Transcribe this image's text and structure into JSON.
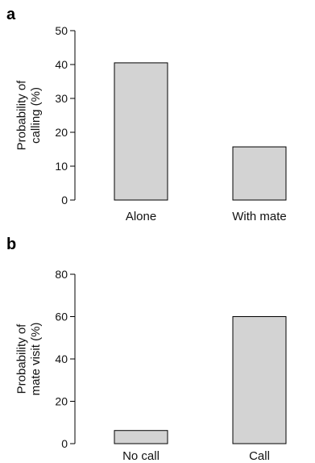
{
  "chart_data": [
    {
      "type": "bar",
      "panel": "a",
      "categories": [
        "Alone",
        "With mate"
      ],
      "values": [
        40.5,
        15.7
      ],
      "ylabel_lines": [
        "Probability of",
        "calling (%)"
      ],
      "ylim": [
        0,
        50
      ],
      "yticks": [
        0,
        10,
        20,
        30,
        40,
        50
      ],
      "bar_color": "#d3d3d3"
    },
    {
      "type": "bar",
      "panel": "b",
      "categories": [
        "No call",
        "Call"
      ],
      "values": [
        6.2,
        60
      ],
      "ylabel_lines": [
        "Probability of",
        "mate visit (%)"
      ],
      "ylim": [
        0,
        80
      ],
      "yticks": [
        0,
        20,
        40,
        60,
        80
      ],
      "bar_color": "#d3d3d3"
    }
  ]
}
